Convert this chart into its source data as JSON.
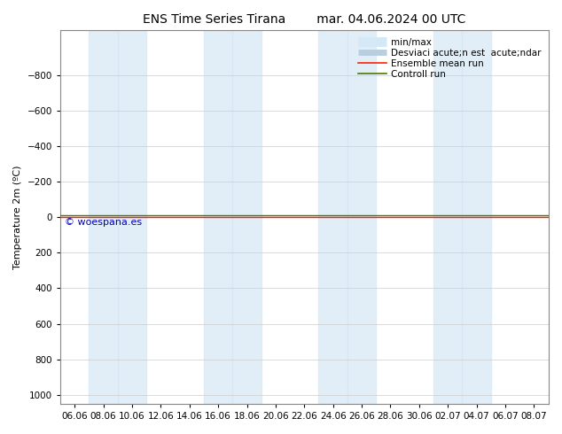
{
  "title_left": "ENS Time Series Tirana",
  "title_right": "mar. 04.06.2024 00 UTC",
  "ylabel": "Temperature 2m (ºC)",
  "ylim": [
    -1050,
    1050
  ],
  "yticks": [
    -800,
    -600,
    -400,
    -200,
    0,
    200,
    400,
    600,
    800,
    1000
  ],
  "xtick_labels": [
    "06.06",
    "08.06",
    "10.06",
    "12.06",
    "14.06",
    "16.06",
    "18.06",
    "20.06",
    "22.06",
    "24.06",
    "26.06",
    "28.06",
    "30.06",
    "02.07",
    "04.07",
    "06.07",
    "08.07"
  ],
  "band_color": "#d5e8f5",
  "band_alpha": 0.7,
  "control_run_color": "#4a7a00",
  "ensemble_mean_color": "#ff2000",
  "watermark": "© woespana.es",
  "watermark_color": "#0000bb",
  "legend_label_minmax": "min/max",
  "legend_label_std": "Desviaci acute;n est  acute;ndar",
  "legend_label_ens": "Ensemble mean run",
  "legend_label_ctrl": "Controll run",
  "legend_color_minmax": "#d5e8f5",
  "legend_color_std": "#b8cfe0",
  "fig_bg": "#ffffff",
  "plot_bg": "#ffffff",
  "title_fontsize": 10,
  "axis_fontsize": 8,
  "tick_fontsize": 7.5,
  "legend_fontsize": 7.5
}
